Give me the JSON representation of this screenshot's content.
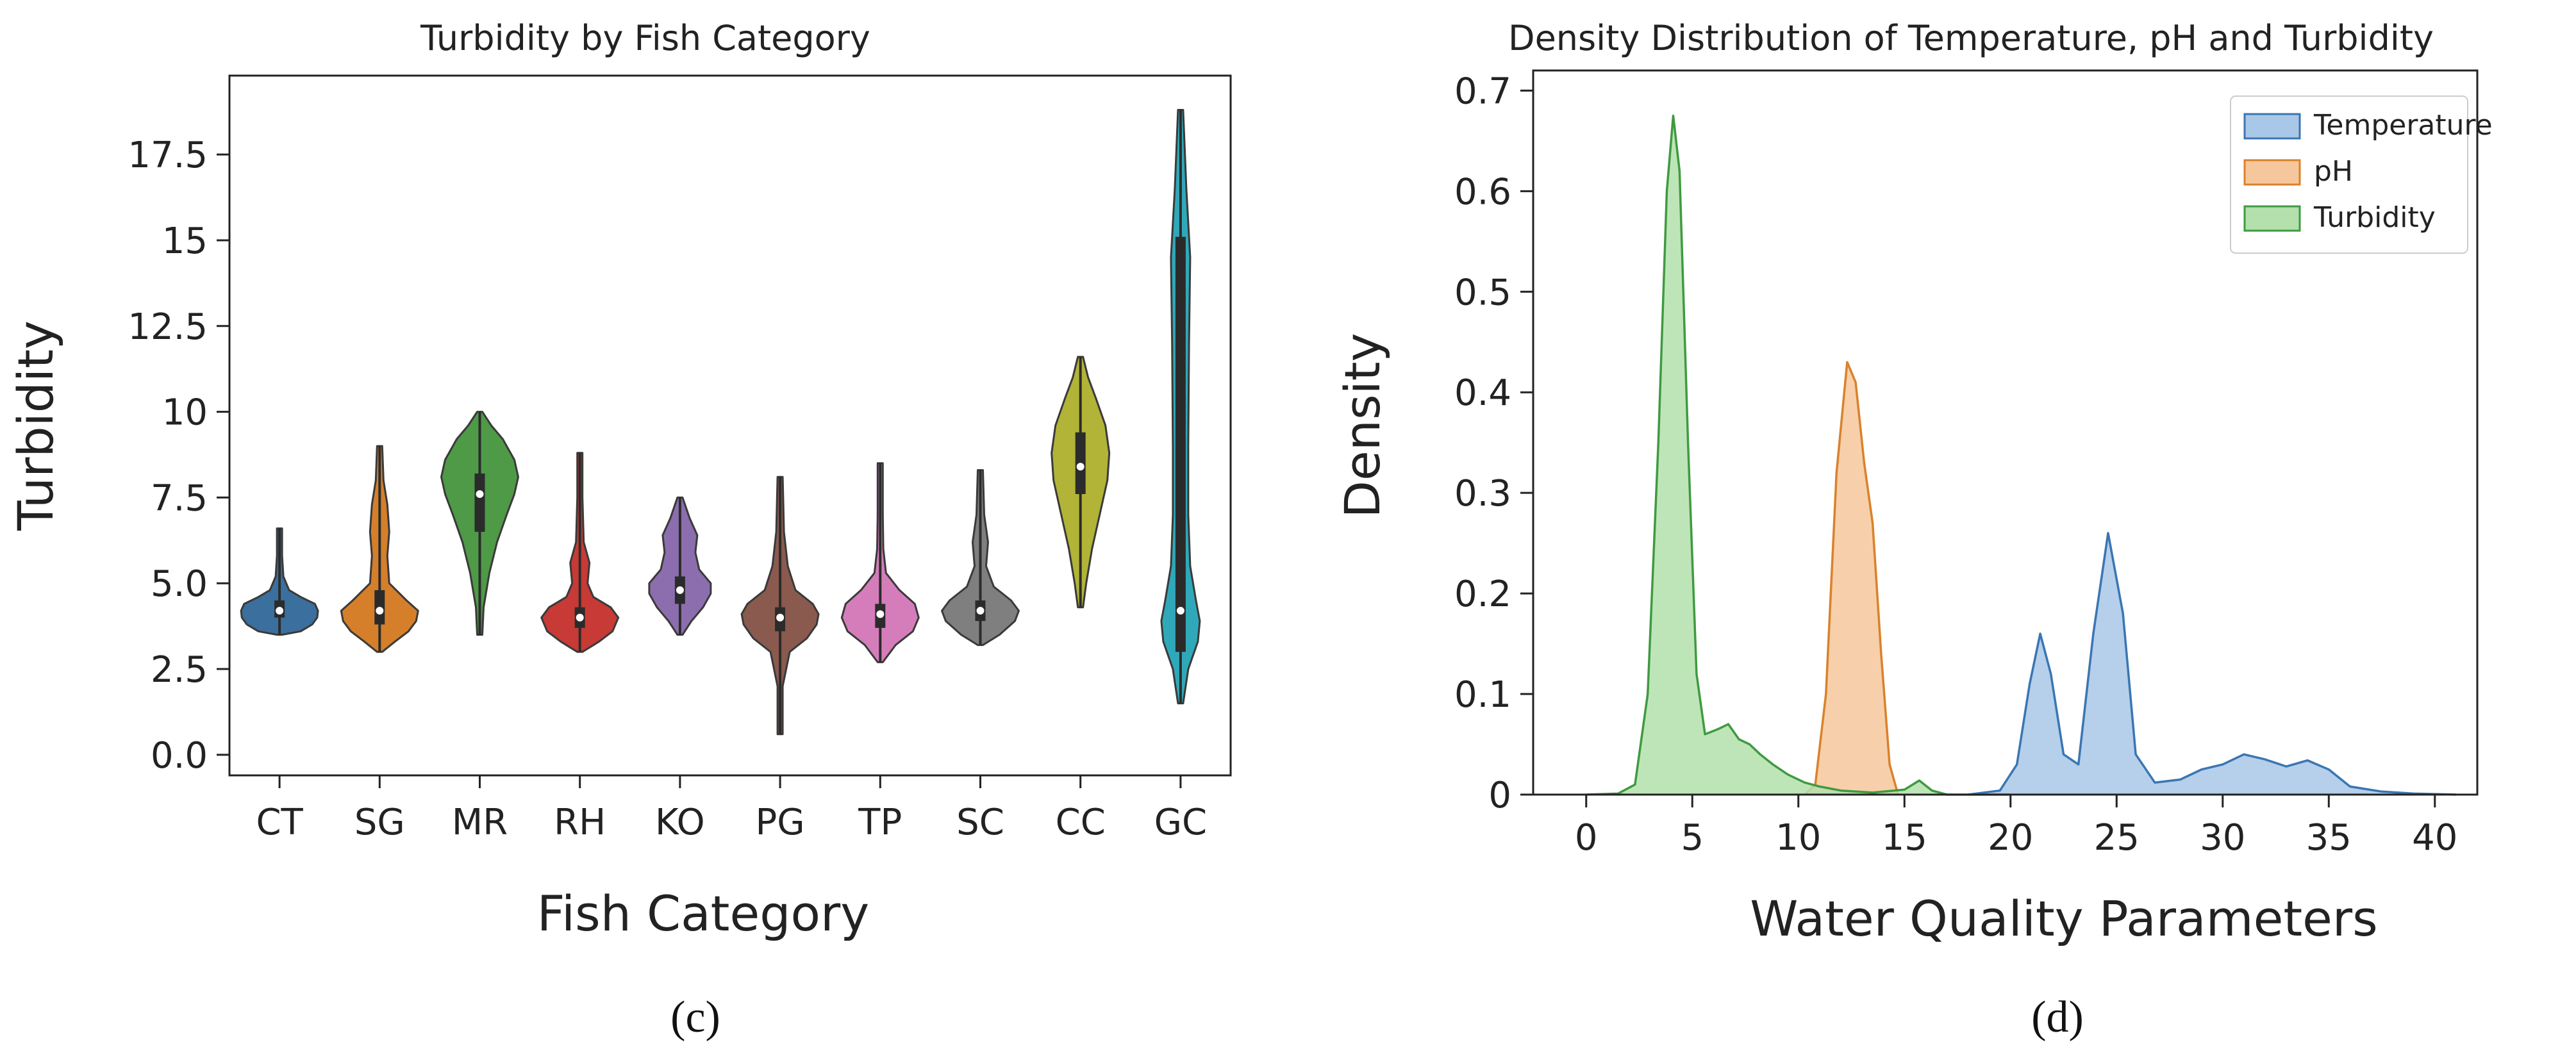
{
  "chart_data": [
    {
      "type": "violin",
      "title": "Turbidity by Fish Category",
      "xlabel": "Fish Category",
      "ylabel": "Turbidity",
      "panel_label": "(c)",
      "ylim": [
        -0.6,
        19.8
      ],
      "yticks": [
        {
          "value": 0.0,
          "label": "0.0"
        },
        {
          "value": 2.5,
          "label": "2.5"
        },
        {
          "value": 5.0,
          "label": "5.0"
        },
        {
          "value": 7.5,
          "label": "7.5"
        },
        {
          "value": 10,
          "label": "10"
        },
        {
          "value": 12.5,
          "label": "12.5"
        },
        {
          "value": 15,
          "label": "15"
        },
        {
          "value": 17.5,
          "label": "17.5"
        }
      ],
      "categories": [
        "CT",
        "SG",
        "MR",
        "RH",
        "KO",
        "PG",
        "TP",
        "SC",
        "CC",
        "GC"
      ],
      "colors": [
        "#3a6f9e",
        "#d57f2a",
        "#4e9a47",
        "#c73a36",
        "#8c6eae",
        "#8a5a4f",
        "#d57dbb",
        "#7f7f7f",
        "#b1b437",
        "#2fa9b9"
      ],
      "violins": [
        {
          "min": 3.5,
          "max": 6.6,
          "median": 4.2,
          "q1": 4.0,
          "q3": 4.5,
          "profile": [
            [
              3.5,
              0.0
            ],
            [
              3.6,
              0.55
            ],
            [
              3.8,
              0.85
            ],
            [
              4.0,
              0.98
            ],
            [
              4.2,
              1.0
            ],
            [
              4.4,
              0.92
            ],
            [
              4.6,
              0.55
            ],
            [
              4.8,
              0.25
            ],
            [
              5.2,
              0.1
            ],
            [
              5.8,
              0.06
            ],
            [
              6.6,
              0.0
            ]
          ]
        },
        {
          "min": 3.0,
          "max": 9.0,
          "median": 4.2,
          "q1": 3.8,
          "q3": 4.8,
          "profile": [
            [
              3.0,
              0.0
            ],
            [
              3.3,
              0.4
            ],
            [
              3.6,
              0.75
            ],
            [
              3.9,
              0.95
            ],
            [
              4.2,
              1.0
            ],
            [
              4.5,
              0.7
            ],
            [
              5.0,
              0.25
            ],
            [
              5.8,
              0.2
            ],
            [
              6.5,
              0.25
            ],
            [
              7.3,
              0.2
            ],
            [
              8.0,
              0.1
            ],
            [
              9.0,
              0.0
            ]
          ]
        },
        {
          "min": 3.5,
          "max": 10.0,
          "median": 7.6,
          "q1": 6.5,
          "q3": 8.2,
          "profile": [
            [
              3.5,
              0.0
            ],
            [
              4.3,
              0.1
            ],
            [
              5.3,
              0.25
            ],
            [
              6.2,
              0.45
            ],
            [
              7.0,
              0.7
            ],
            [
              7.6,
              0.9
            ],
            [
              8.1,
              1.0
            ],
            [
              8.6,
              0.9
            ],
            [
              9.2,
              0.6
            ],
            [
              9.6,
              0.3
            ],
            [
              10.0,
              0.0
            ]
          ]
        },
        {
          "min": 3.0,
          "max": 8.8,
          "median": 4.0,
          "q1": 3.7,
          "q3": 4.3,
          "profile": [
            [
              3.0,
              0.0
            ],
            [
              3.3,
              0.5
            ],
            [
              3.6,
              0.85
            ],
            [
              4.0,
              1.0
            ],
            [
              4.3,
              0.8
            ],
            [
              4.6,
              0.35
            ],
            [
              5.0,
              0.2
            ],
            [
              5.6,
              0.25
            ],
            [
              6.2,
              0.1
            ],
            [
              7.5,
              0.06
            ],
            [
              8.8,
              0.0
            ]
          ]
        },
        {
          "min": 3.5,
          "max": 7.5,
          "median": 4.8,
          "q1": 4.4,
          "q3": 5.2,
          "profile": [
            [
              3.5,
              0.0
            ],
            [
              3.9,
              0.3
            ],
            [
              4.3,
              0.6
            ],
            [
              4.7,
              0.8
            ],
            [
              5.0,
              0.8
            ],
            [
              5.4,
              0.5
            ],
            [
              5.9,
              0.4
            ],
            [
              6.4,
              0.45
            ],
            [
              6.9,
              0.25
            ],
            [
              7.5,
              0.0
            ]
          ]
        },
        {
          "min": 0.6,
          "max": 8.1,
          "median": 4.0,
          "q1": 3.6,
          "q3": 4.3,
          "profile": [
            [
              0.6,
              0.0
            ],
            [
              2.0,
              0.05
            ],
            [
              3.0,
              0.25
            ],
            [
              3.4,
              0.7
            ],
            [
              3.8,
              0.95
            ],
            [
              4.1,
              1.0
            ],
            [
              4.4,
              0.85
            ],
            [
              4.8,
              0.4
            ],
            [
              5.5,
              0.2
            ],
            [
              6.5,
              0.1
            ],
            [
              8.1,
              0.0
            ]
          ]
        },
        {
          "min": 2.7,
          "max": 8.5,
          "median": 4.1,
          "q1": 3.7,
          "q3": 4.4,
          "profile": [
            [
              2.7,
              0.0
            ],
            [
              3.2,
              0.4
            ],
            [
              3.6,
              0.85
            ],
            [
              4.0,
              1.0
            ],
            [
              4.4,
              0.9
            ],
            [
              4.8,
              0.5
            ],
            [
              5.3,
              0.15
            ],
            [
              6.0,
              0.08
            ],
            [
              7.0,
              0.06
            ],
            [
              8.5,
              0.0
            ]
          ]
        },
        {
          "min": 3.2,
          "max": 8.3,
          "median": 4.2,
          "q1": 3.9,
          "q3": 4.5,
          "profile": [
            [
              3.2,
              0.0
            ],
            [
              3.5,
              0.5
            ],
            [
              3.9,
              0.9
            ],
            [
              4.2,
              1.0
            ],
            [
              4.5,
              0.8
            ],
            [
              4.9,
              0.35
            ],
            [
              5.5,
              0.15
            ],
            [
              6.2,
              0.2
            ],
            [
              7.0,
              0.1
            ],
            [
              8.3,
              0.0
            ]
          ]
        },
        {
          "min": 4.3,
          "max": 11.6,
          "median": 8.4,
          "q1": 7.6,
          "q3": 9.4,
          "profile": [
            [
              4.3,
              0.0
            ],
            [
              5.0,
              0.15
            ],
            [
              6.0,
              0.3
            ],
            [
              7.0,
              0.5
            ],
            [
              8.0,
              0.7
            ],
            [
              8.8,
              0.75
            ],
            [
              9.6,
              0.65
            ],
            [
              10.4,
              0.4
            ],
            [
              11.0,
              0.2
            ],
            [
              11.6,
              0.0
            ]
          ]
        },
        {
          "min": 1.5,
          "max": 18.8,
          "median": 4.2,
          "q1": 3.0,
          "q3": 15.1,
          "profile": [
            [
              1.5,
              0.0
            ],
            [
              2.5,
              0.2
            ],
            [
              3.3,
              0.45
            ],
            [
              3.9,
              0.5
            ],
            [
              4.5,
              0.4
            ],
            [
              5.5,
              0.25
            ],
            [
              7.0,
              0.2
            ],
            [
              9.0,
              0.2
            ],
            [
              12.0,
              0.22
            ],
            [
              14.5,
              0.25
            ],
            [
              16.5,
              0.15
            ],
            [
              18.8,
              0.0
            ]
          ]
        }
      ]
    },
    {
      "type": "area",
      "title": "Density Distribution of Temperature, pH and Turbidity",
      "xlabel": "Water Quality Parameters",
      "ylabel": "Density",
      "panel_label": "(d)",
      "xlim": [
        -2.5,
        42
      ],
      "ylim": [
        0,
        0.72
      ],
      "xticks": [
        0,
        5,
        10,
        15,
        20,
        25,
        30,
        35,
        40
      ],
      "yticks": [
        {
          "value": 0,
          "label": "0"
        },
        {
          "value": 0.1,
          "label": "0.1"
        },
        {
          "value": 0.2,
          "label": "0.2"
        },
        {
          "value": 0.3,
          "label": "0.3"
        },
        {
          "value": 0.4,
          "label": "0.4"
        },
        {
          "value": 0.5,
          "label": "0.5"
        },
        {
          "value": 0.6,
          "label": "0.6"
        },
        {
          "value": 0.7,
          "label": "0.7"
        }
      ],
      "legend_position": "top-right",
      "series": [
        {
          "name": "Temperature",
          "line_color": "#3a76b2",
          "fill_color": "#a9c7e6",
          "points": [
            [
              18,
              0
            ],
            [
              19.5,
              0.004
            ],
            [
              20.3,
              0.03
            ],
            [
              20.9,
              0.11
            ],
            [
              21.4,
              0.16
            ],
            [
              21.9,
              0.12
            ],
            [
              22.5,
              0.04
            ],
            [
              23.2,
              0.03
            ],
            [
              23.9,
              0.16
            ],
            [
              24.6,
              0.26
            ],
            [
              25.3,
              0.18
            ],
            [
              25.9,
              0.04
            ],
            [
              26.8,
              0.012
            ],
            [
              28,
              0.015
            ],
            [
              29,
              0.025
            ],
            [
              30,
              0.03
            ],
            [
              31,
              0.04
            ],
            [
              32,
              0.035
            ],
            [
              33,
              0.028
            ],
            [
              34,
              0.034
            ],
            [
              35,
              0.025
            ],
            [
              36,
              0.008
            ],
            [
              37.5,
              0.003
            ],
            [
              39,
              0.001
            ],
            [
              41,
              0
            ]
          ]
        },
        {
          "name": "pH",
          "line_color": "#d9822b",
          "fill_color": "#f6c79c",
          "points": [
            [
              10.3,
              0
            ],
            [
              10.8,
              0.01
            ],
            [
              11.3,
              0.1
            ],
            [
              11.8,
              0.32
            ],
            [
              12.3,
              0.43
            ],
            [
              12.7,
              0.41
            ],
            [
              13.1,
              0.33
            ],
            [
              13.5,
              0.27
            ],
            [
              13.9,
              0.14
            ],
            [
              14.3,
              0.03
            ],
            [
              14.7,
              0
            ]
          ]
        },
        {
          "name": "Turbidity",
          "line_color": "#3f9a41",
          "fill_color": "#b3e0ac",
          "points": [
            [
              0,
              0
            ],
            [
              1.5,
              0.001
            ],
            [
              2.3,
              0.01
            ],
            [
              2.9,
              0.1
            ],
            [
              3.4,
              0.35
            ],
            [
              3.8,
              0.6
            ],
            [
              4.1,
              0.675
            ],
            [
              4.4,
              0.62
            ],
            [
              4.8,
              0.35
            ],
            [
              5.2,
              0.12
            ],
            [
              5.6,
              0.06
            ],
            [
              6.2,
              0.065
            ],
            [
              6.7,
              0.07
            ],
            [
              7.2,
              0.055
            ],
            [
              7.7,
              0.05
            ],
            [
              8.2,
              0.04
            ],
            [
              8.8,
              0.03
            ],
            [
              9.5,
              0.02
            ],
            [
              10.3,
              0.012
            ],
            [
              11,
              0.008
            ],
            [
              12,
              0.004
            ],
            [
              13.5,
              0.002
            ],
            [
              15,
              0.005
            ],
            [
              15.7,
              0.014
            ],
            [
              16.3,
              0.004
            ],
            [
              17,
              0
            ],
            [
              20,
              0
            ]
          ]
        }
      ]
    }
  ]
}
